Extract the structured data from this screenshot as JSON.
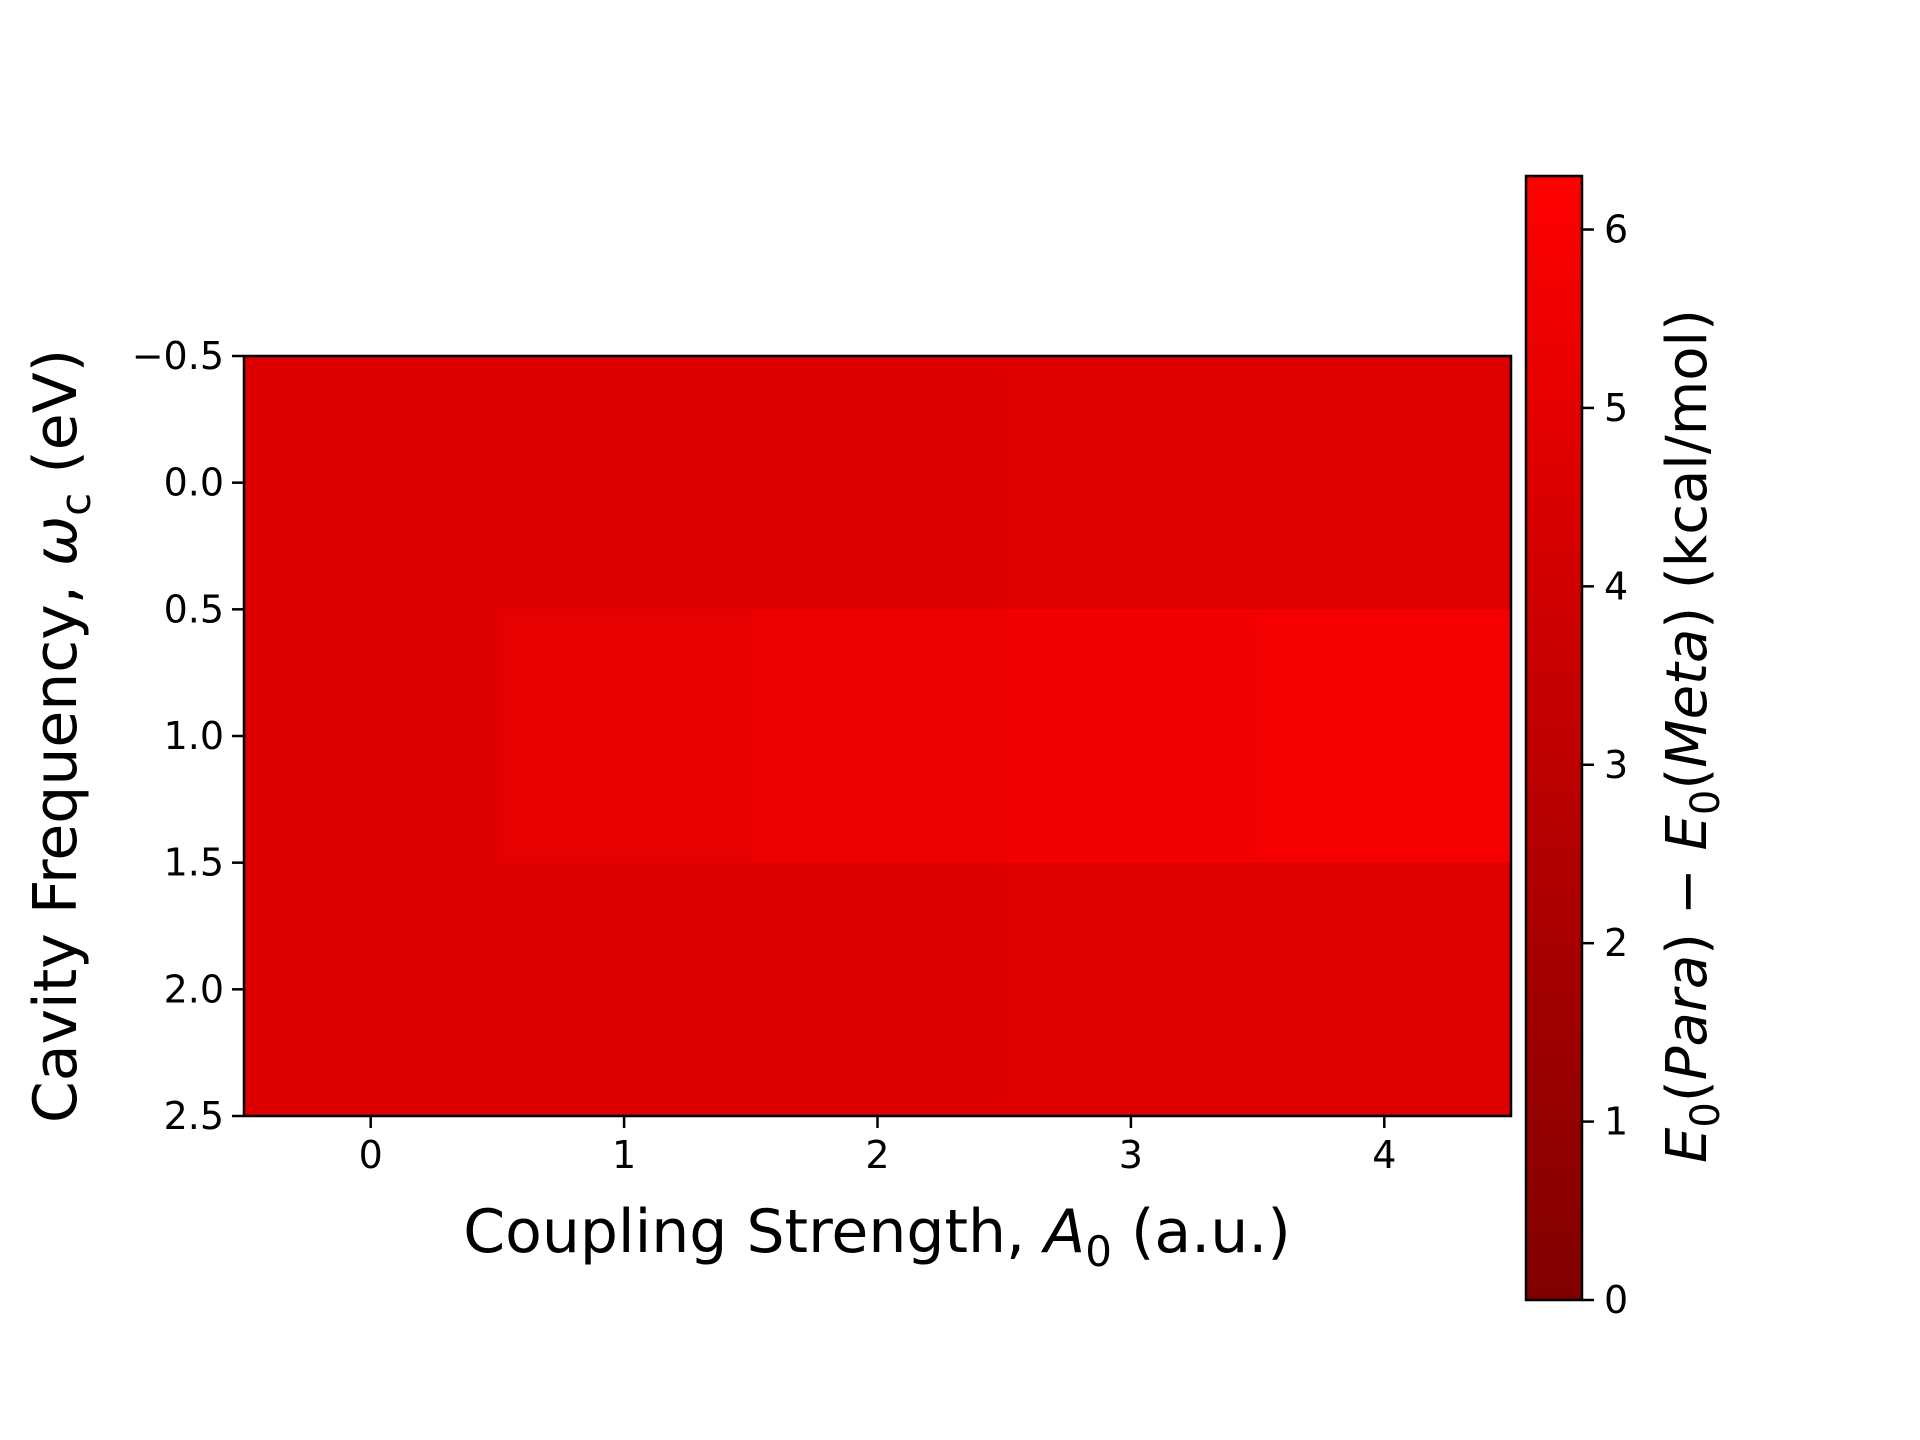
{
  "chart_data": {
    "type": "heatmap",
    "x_categories": [
      0,
      1,
      2,
      3,
      4
    ],
    "y_categories": [
      0,
      1,
      2
    ],
    "values": [
      [
        4.55,
        4.6,
        4.62,
        4.65,
        4.68
      ],
      [
        4.55,
        5.05,
        5.35,
        5.55,
        5.8
      ],
      [
        4.55,
        4.6,
        4.62,
        4.65,
        4.68
      ]
    ],
    "x_ticks": [
      0,
      1,
      2,
      3,
      4
    ],
    "x_tick_labels": [
      "0",
      "1",
      "2",
      "3",
      "4"
    ],
    "y_ticks": [
      -0.5,
      0.0,
      0.5,
      1.0,
      1.5,
      2.0,
      2.5
    ],
    "y_tick_labels": [
      "−0.5",
      "0.0",
      "0.5",
      "1.0",
      "1.5",
      "2.0",
      "2.5"
    ],
    "xlim": [
      -0.5,
      4.5
    ],
    "ylim": [
      2.5,
      -0.5
    ],
    "xlabel": {
      "pre": "Coupling Strength, ",
      "italic": "A",
      "sub": "0",
      "post": " (a.u.)"
    },
    "ylabel": {
      "pre": "Cavity Frequency, ",
      "italic": "ω",
      "sub": "c",
      "post": " (eV)"
    },
    "colorbar": {
      "range": [
        0,
        6.3
      ],
      "ticks": [
        0,
        1,
        2,
        3,
        4,
        5,
        6
      ],
      "tick_labels": [
        "0",
        "1",
        "2",
        "3",
        "4",
        "5",
        "6"
      ],
      "colors": [
        "#800000",
        "#ff0000"
      ],
      "label": {
        "e1": "E",
        "s1": "0",
        "p1": "(",
        "i1": "Para",
        "p2": ") − ",
        "e2": "E",
        "s2": "0",
        "p3": "(",
        "i2": "Meta",
        "p4": ") (kcal/mol)"
      }
    }
  }
}
